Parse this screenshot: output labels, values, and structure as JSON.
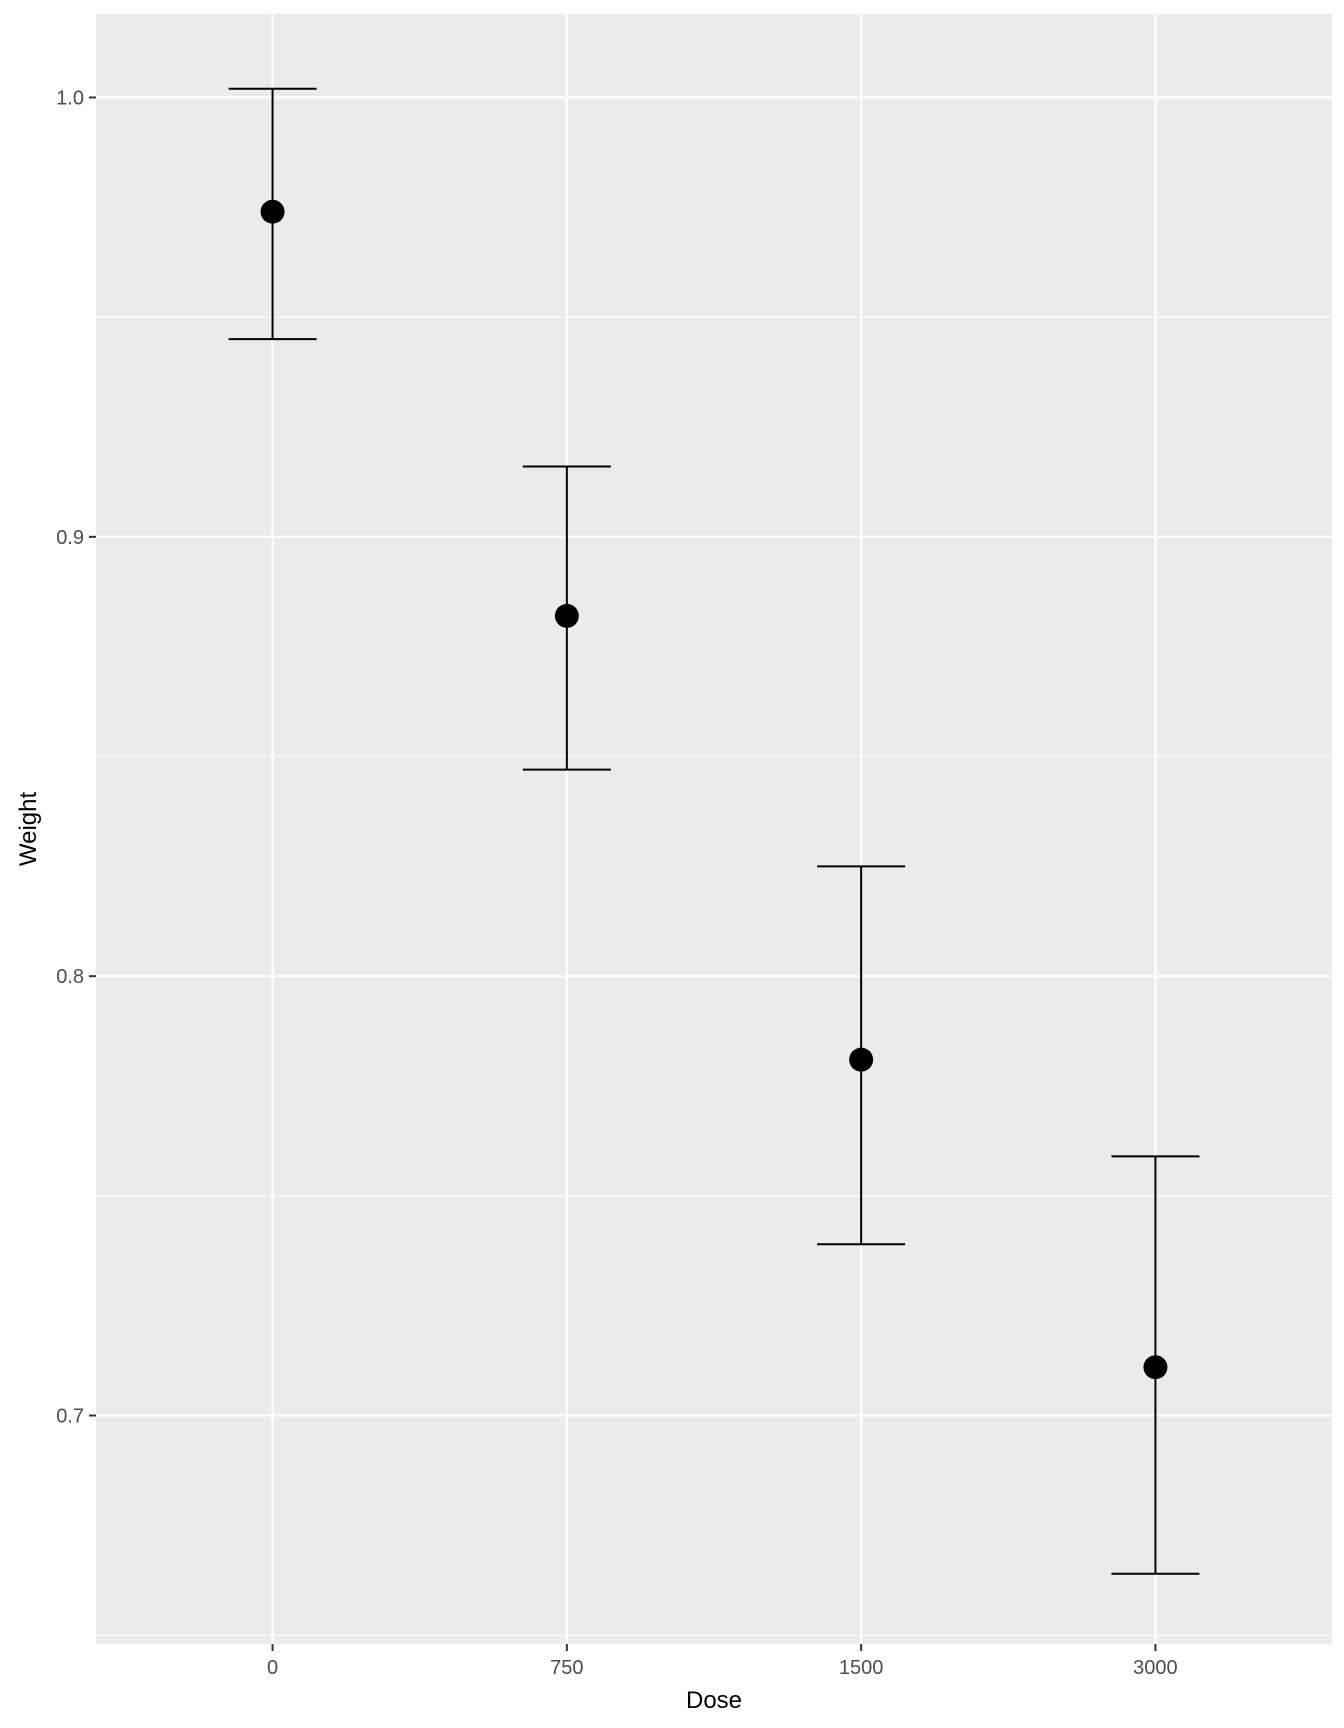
{
  "chart_data": {
    "type": "scatter",
    "subtype": "point-with-errorbars",
    "categories": [
      "0",
      "750",
      "1500",
      "3000"
    ],
    "xlabel": "Dose",
    "ylabel": "Weight",
    "ylim": [
      0.648,
      1.019
    ],
    "yticks": [
      0.7,
      0.8,
      0.9,
      1.0
    ],
    "ytick_labels": [
      "0.7",
      "0.8",
      "0.9",
      "1.0"
    ],
    "points": [
      {
        "category": "0",
        "y": 0.974,
        "ymin": 0.945,
        "ymax": 1.002
      },
      {
        "category": "750",
        "y": 0.882,
        "ymin": 0.847,
        "ymax": 0.916
      },
      {
        "category": "1500",
        "y": 0.781,
        "ymin": 0.739,
        "ymax": 0.825
      },
      {
        "category": "3000",
        "y": 0.711,
        "ymin": 0.664,
        "ymax": 0.759
      }
    ],
    "grid": true,
    "legend": "none",
    "colors": {
      "panel": "#ebebeb",
      "grid": "#ffffff",
      "mark": "#000000"
    }
  }
}
